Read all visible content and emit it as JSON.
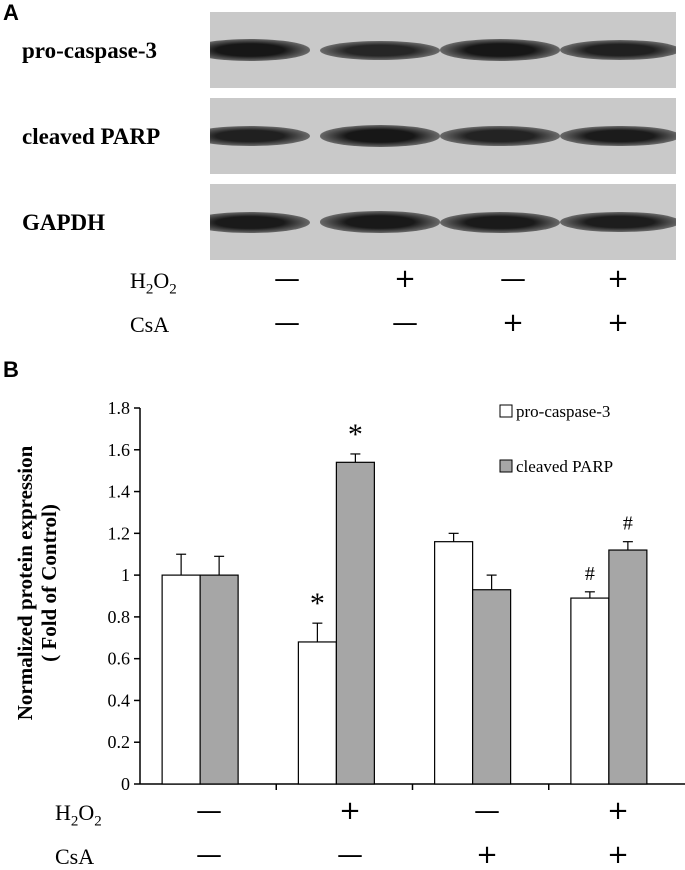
{
  "panel_a": {
    "letter": "A",
    "blots": [
      {
        "label": "pro-caspase-3",
        "intensities": [
          0.95,
          0.7,
          0.95,
          0.8
        ]
      },
      {
        "label": "cleaved PARP",
        "intensities": [
          0.8,
          0.95,
          0.75,
          0.88
        ]
      },
      {
        "label": "GAPDH",
        "intensities": [
          0.9,
          0.92,
          0.9,
          0.85
        ]
      }
    ],
    "treatments": [
      {
        "label": "H",
        "sub1": "2",
        "mid": "O",
        "sub2": "2",
        "values": [
          "—",
          "+",
          "—",
          "+"
        ]
      },
      {
        "label": "CsA",
        "values": [
          "—",
          "—",
          "+",
          "+"
        ]
      }
    ]
  },
  "panel_b": {
    "letter": "B",
    "treatments": [
      {
        "label": "H",
        "sub1": "2",
        "mid": "O",
        "sub2": "2",
        "values": [
          "—",
          "+",
          "—",
          "+"
        ]
      },
      {
        "label": "CsA",
        "values": [
          "—",
          "—",
          "+",
          "+"
        ]
      }
    ]
  },
  "chart_data": {
    "type": "bar",
    "ylabel_line1": "Normalized protein expression",
    "ylabel_line2": "( Fold of Control)",
    "ylim": [
      0,
      1.8
    ],
    "yticks": [
      "0",
      "0.2",
      "0.4",
      "0.6",
      "0.8",
      "1",
      "1.2",
      "1.4",
      "1.6",
      "1.8"
    ],
    "groups": 4,
    "series": [
      {
        "name": "pro-caspase-3",
        "color": "#ffffff",
        "values": [
          1.0,
          0.68,
          1.16,
          0.89
        ],
        "errors": [
          0.1,
          0.09,
          0.04,
          0.03
        ],
        "marks": [
          "",
          "*",
          "",
          "#"
        ]
      },
      {
        "name": "cleaved PARP",
        "color": "#a6a6a6",
        "values": [
          1.0,
          1.54,
          0.93,
          1.12
        ],
        "errors": [
          0.09,
          0.04,
          0.07,
          0.04
        ],
        "marks": [
          "",
          "*",
          "",
          "#"
        ]
      }
    ],
    "legend_position": "top-right",
    "grid": false
  }
}
